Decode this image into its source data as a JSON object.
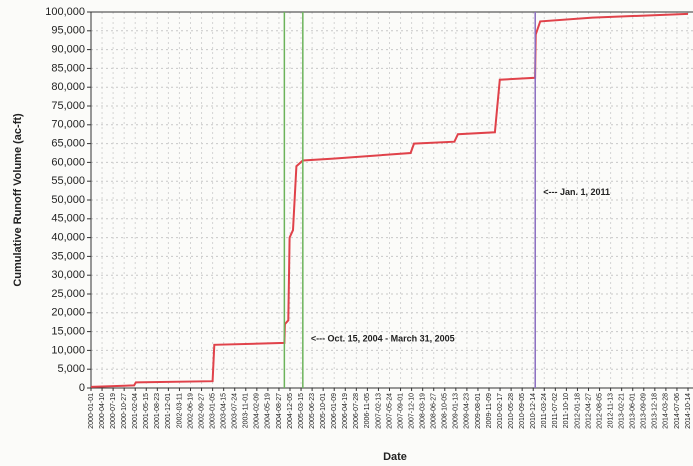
{
  "chart_data": {
    "type": "line",
    "x_label": "Date",
    "y_label": "Cumulative Runoff Volume (ac-ft)",
    "xlim": [
      "2000-01-01",
      "2014-10-14"
    ],
    "xticks": [
      "2000-01-01",
      "2000-04-10",
      "2000-07-19",
      "2000-10-27",
      "2001-02-04",
      "2001-05-15",
      "2001-08-23",
      "2001-12-01",
      "2002-03-11",
      "2002-06-19",
      "2002-09-27",
      "2003-01-05",
      "2003-04-15",
      "2003-07-24",
      "2003-11-01",
      "2004-02-09",
      "2004-05-19",
      "2004-08-27",
      "2004-12-05",
      "2005-03-15",
      "2005-06-23",
      "2005-10-01",
      "2006-01-09",
      "2006-04-19",
      "2006-07-28",
      "2006-11-05",
      "2007-02-13",
      "2007-05-24",
      "2007-09-01",
      "2007-12-10",
      "2008-03-19",
      "2008-06-27",
      "2008-10-05",
      "2009-01-13",
      "2009-04-23",
      "2009-08-01",
      "2009-11-09",
      "2010-02-17",
      "2010-05-28",
      "2010-09-05",
      "2010-12-14",
      "2011-03-24",
      "2011-07-02",
      "2011-10-10",
      "2012-01-18",
      "2012-04-27",
      "2012-08-05",
      "2012-11-13",
      "2013-02-21",
      "2013-06-01",
      "2013-09-09",
      "2013-12-18",
      "2014-03-28",
      "2014-07-06",
      "2014-10-14"
    ],
    "ylim": [
      0,
      100000
    ],
    "yticks": [
      0,
      {
        "value": 5000,
        "label": "5,000"
      },
      {
        "value": 10000,
        "label": "10,000"
      },
      {
        "value": 15000,
        "label": "15,000"
      },
      {
        "value": 20000,
        "label": "20,000"
      },
      {
        "value": 25000,
        "label": "25,000"
      },
      {
        "value": 30000,
        "label": "30,000"
      },
      {
        "value": 35000,
        "label": "35,000"
      },
      {
        "value": 40000,
        "label": "40,000"
      },
      {
        "value": 45000,
        "label": "45,000"
      },
      {
        "value": 50000,
        "label": "50,000"
      },
      {
        "value": 55000,
        "label": "55,000"
      },
      {
        "value": 60000,
        "label": "60,000"
      },
      {
        "value": 65000,
        "label": "65,000"
      },
      {
        "value": 70000,
        "label": "70,000"
      },
      {
        "value": 75000,
        "label": "75,000"
      },
      {
        "value": 80000,
        "label": "80,000"
      },
      {
        "value": 85000,
        "label": "85,000"
      },
      {
        "value": 90000,
        "label": "90,000"
      },
      {
        "value": 95000,
        "label": "95,000"
      },
      {
        "value": 100000,
        "label": "100,000"
      }
    ],
    "grid": true,
    "series": [
      {
        "color": "#e0424a",
        "x": [
          "2000-01-01",
          "2001-01-25",
          "2001-02-10",
          "2003-01-05",
          "2003-01-20",
          "2004-10-15",
          "2004-10-20",
          "2004-11-20",
          "2004-12-01",
          "2005-01-01",
          "2005-02-01",
          "2005-03-31",
          "2006-01-01",
          "2007-12-01",
          "2008-01-01",
          "2008-12-31",
          "2009-02-01",
          "2010-01-01",
          "2010-02-15",
          "2010-12-31",
          "2011-01-05",
          "2011-02-15",
          "2012-06-01",
          "2014-10-14"
        ],
        "values": [
          300,
          700,
          1500,
          1800,
          11500,
          12000,
          17000,
          18000,
          40000,
          42000,
          59000,
          60500,
          61000,
          62500,
          65000,
          65500,
          67500,
          68000,
          82000,
          82500,
          94000,
          97500,
          98500,
          99500
        ]
      }
    ],
    "reference_lines": [
      {
        "x": "2004-10-15",
        "color": "#6cb35a"
      },
      {
        "x": "2005-03-31",
        "color": "#6cb35a"
      },
      {
        "x": "2011-01-01",
        "color": "#8a6cc0"
      }
    ],
    "annotations": [
      {
        "text": "<--- Oct. 15, 2004 - March 31, 2005",
        "x": "2005-03-31",
        "y": 13000
      },
      {
        "text": "<--- Jan. 1, 2011",
        "x": "2011-01-01",
        "y": 52000
      }
    ]
  }
}
